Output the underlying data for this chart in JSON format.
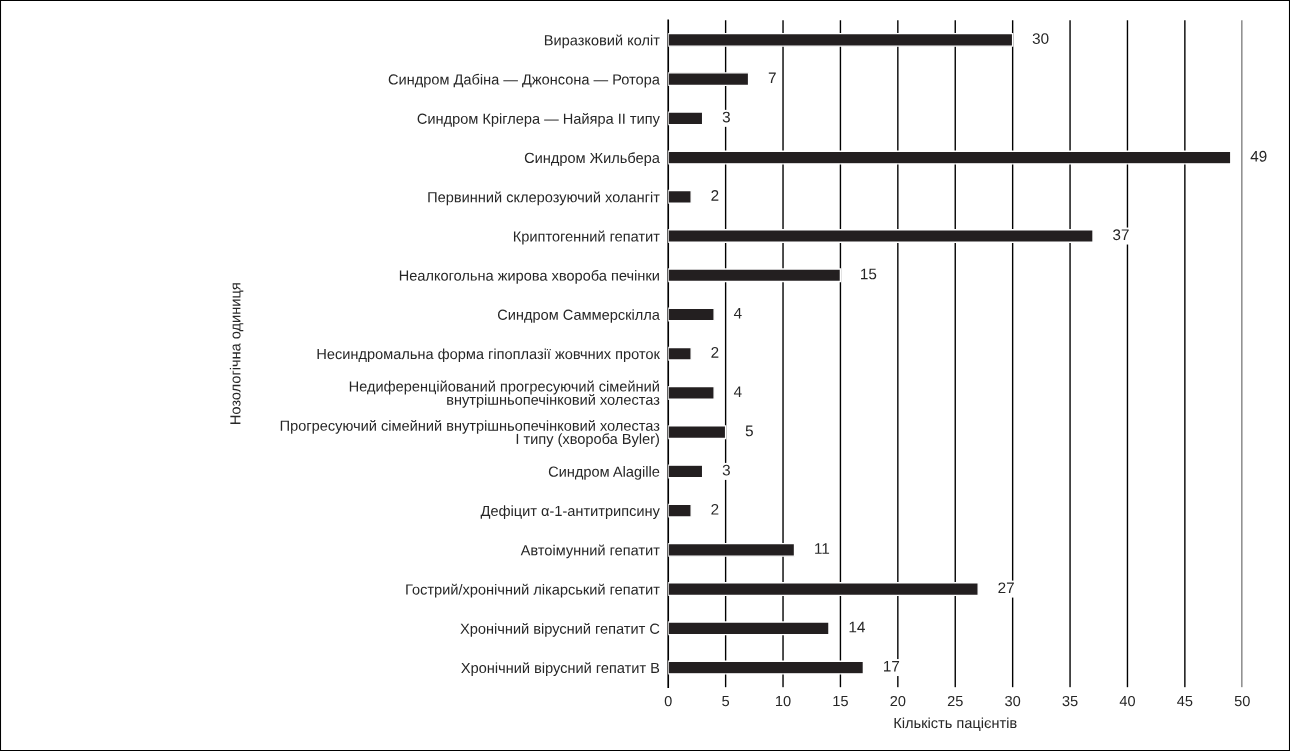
{
  "chart_data": {
    "type": "bar",
    "orientation": "horizontal",
    "xlabel": "Кількість пацієнтів",
    "ylabel": "Нозологічна одиниця",
    "categories": [
      "Виразковий коліт",
      "Синдром Дабіна — Джонсона — Ротора",
      "Синдром Кріглера — Найяра ІІ типу",
      "Синдром Жильбера",
      "Первинний склерозуючий холангіт",
      "Криптогенний гепатит",
      "Неалкогольна жирова хвороба печінки",
      "Синдром Саммерскілла",
      "Несиндромальна форма гіпоплазії жовчних проток",
      "Недиференційований прогресуючий сімейний\nвнутрішньопечінковий холестаз",
      "Прогресуючий сімейний внутрішньопечінковий холестаз\nІ типу (хвороба Byler)",
      "Синдром Alagille",
      "Дефіцит α-1-антитрипсину",
      "Автоімунний гепатит",
      "Гострий/хронічний лікарський гепатит",
      "Хронічний вірусний гепатит С",
      "Хронічний вірусний гепатит В"
    ],
    "values": [
      30,
      7,
      3,
      49,
      2,
      37,
      15,
      4,
      2,
      4,
      5,
      3,
      2,
      11,
      27,
      14,
      17
    ],
    "color": "#231f20",
    "xlim": [
      0,
      50
    ],
    "xticks": [
      0,
      5,
      10,
      15,
      20,
      25,
      30,
      35,
      40,
      45,
      50
    ],
    "grid": "x",
    "data_labels": true
  }
}
